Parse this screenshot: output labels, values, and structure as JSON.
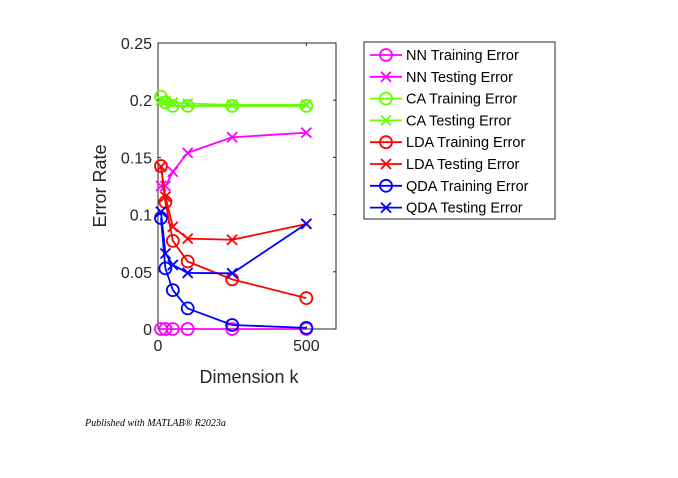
{
  "chart_data": {
    "type": "line",
    "title": "",
    "xlabel": "Dimension k",
    "ylabel": "Error Rate",
    "xlim": [
      0,
      600
    ],
    "ylim": [
      0,
      0.25
    ],
    "xticks": [
      0,
      500
    ],
    "yticks": [
      0,
      0.05,
      0.1,
      0.15,
      0.2,
      0.25
    ],
    "ytick_labels": [
      "0",
      "0.05",
      "0.1",
      "0.15",
      "0.2",
      "0.25"
    ],
    "grid": false,
    "legend_placement": "outside-right-top",
    "x": [
      10,
      25,
      50,
      100,
      250,
      500
    ],
    "series": [
      {
        "name": "NN Training Error",
        "color": "#ff00ff",
        "marker": "circle",
        "values": [
          0,
          0,
          0,
          0,
          0,
          0
        ]
      },
      {
        "name": "NN Testing Error",
        "color": "#ff00ff",
        "marker": "x",
        "values": [
          0.125,
          0.125,
          0.1375,
          0.154,
          0.1676,
          0.1716
        ]
      },
      {
        "name": "CA Training Error",
        "color": "#66ff00",
        "marker": "circle",
        "values": [
          0.203,
          0.198,
          0.195,
          0.195,
          0.195,
          0.195
        ]
      },
      {
        "name": "CA Testing Error",
        "color": "#66ff00",
        "marker": "x",
        "values": [
          0.2,
          0.199,
          0.198,
          0.197,
          0.196,
          0.196
        ]
      },
      {
        "name": "LDA Training Error",
        "color": "#ff0000",
        "marker": "circle",
        "values": [
          0.1425,
          0.111,
          0.077,
          0.059,
          0.0434,
          0.027
        ]
      },
      {
        "name": "LDA Testing Error",
        "color": "#ff0000",
        "marker": "x",
        "values": [
          0.142,
          0.1157,
          0.0894,
          0.079,
          0.078,
          0.0918
        ]
      },
      {
        "name": "QDA Training Error",
        "color": "#0000ff",
        "marker": "circle",
        "values": [
          0.097,
          0.053,
          0.034,
          0.018,
          0.0035,
          0.001
        ]
      },
      {
        "name": "QDA Testing Error",
        "color": "#0000ff",
        "marker": "x",
        "values": [
          0.1025,
          0.066,
          0.056,
          0.049,
          0.0487,
          0.092
        ]
      }
    ]
  },
  "footer": "Published with MATLAB® R2023a"
}
